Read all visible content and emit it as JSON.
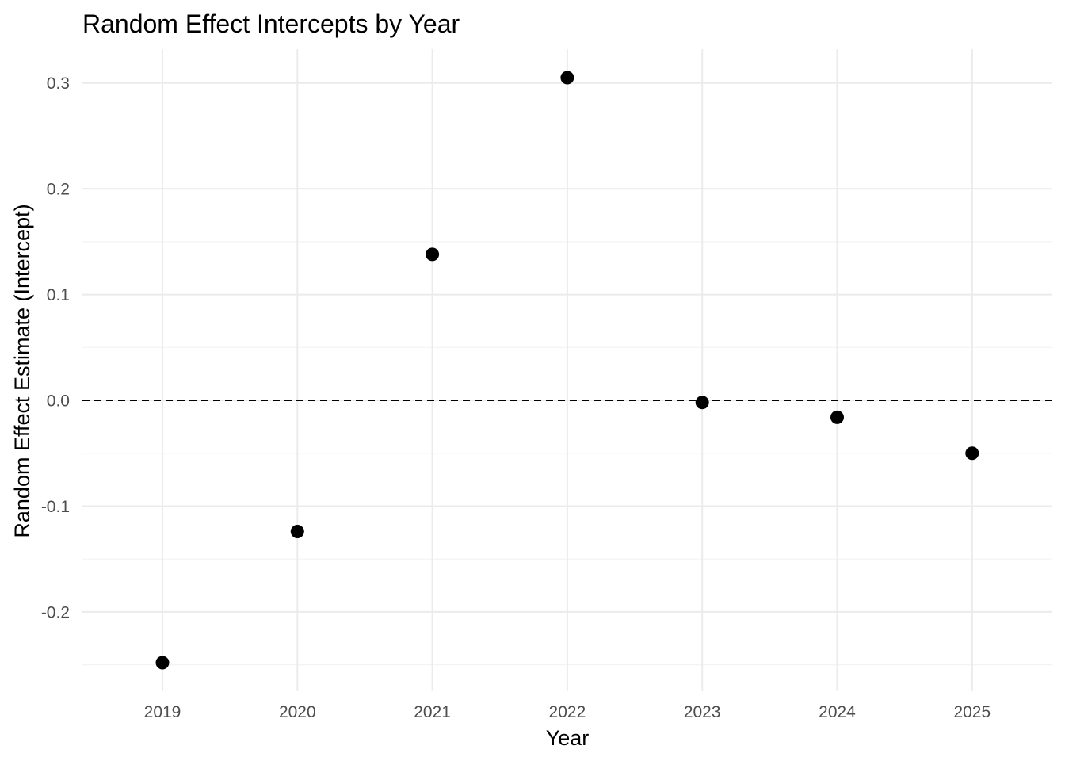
{
  "chart_data": {
    "type": "scatter",
    "title": "Random Effect Intercepts by Year",
    "xlabel": "Year",
    "ylabel": "Random Effect Estimate (Intercept)",
    "x": [
      "2019",
      "2020",
      "2021",
      "2022",
      "2023",
      "2024",
      "2025"
    ],
    "y": [
      -0.248,
      -0.124,
      0.138,
      0.305,
      -0.002,
      -0.016,
      -0.05
    ],
    "yticks": [
      -0.2,
      -0.1,
      0.0,
      0.1,
      0.2,
      0.3
    ],
    "ytick_labels": [
      "-0.2",
      "-0.1",
      "0.0",
      "0.1",
      "0.2",
      "0.3"
    ],
    "ylim": [
      -0.275,
      0.332
    ],
    "reference_line": {
      "y": 0,
      "style": "dashed",
      "color": "#000000"
    },
    "grid": true,
    "point_color": "#000000",
    "legend": "none"
  }
}
